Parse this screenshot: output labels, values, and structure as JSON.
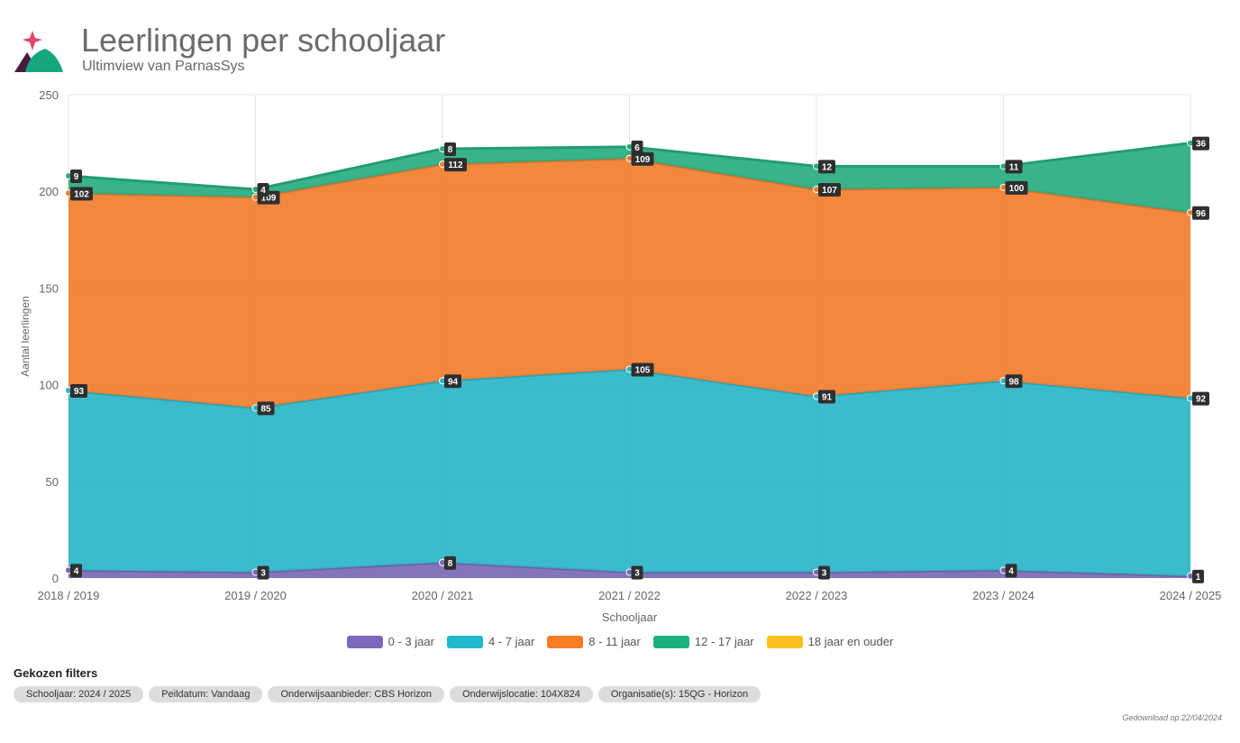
{
  "header": {
    "title": "Leerlingen per schooljaar",
    "subtitle": "Ultimview van ParnasSys"
  },
  "colors": {
    "purple": "#7b68b3",
    "blue": "#2ab5c8",
    "orange": "#f07e2e",
    "green": "#27ad80",
    "yellow": "#f6c12d",
    "logo_pink": "#e2466e",
    "logo_dark": "#4a1a3f",
    "logo_green": "#17a67e"
  },
  "chart_data": {
    "type": "area",
    "stacked": true,
    "title": "Leerlingen per schooljaar",
    "xlabel": "Schooljaar",
    "ylabel": "Aantal leerlingen",
    "ylim": [
      0,
      250
    ],
    "yticks": [
      0,
      50,
      100,
      150,
      200,
      250
    ],
    "categories": [
      "2018 / 2019",
      "2019 / 2020",
      "2020 / 2021",
      "2021 / 2022",
      "2022 / 2023",
      "2023 / 2024",
      "2024 / 2025"
    ],
    "series": [
      {
        "name": "0 - 3 jaar",
        "color": "#7b68b3",
        "values": [
          4,
          3,
          8,
          3,
          3,
          4,
          1
        ]
      },
      {
        "name": "4 - 7 jaar",
        "color": "#2ab5c8",
        "values": [
          93,
          85,
          94,
          105,
          91,
          98,
          92
        ]
      },
      {
        "name": "8 - 11 jaar",
        "color": "#f07e2e",
        "values": [
          102,
          109,
          112,
          109,
          107,
          100,
          96
        ]
      },
      {
        "name": "12 - 17 jaar",
        "color": "#27ad80",
        "values": [
          9,
          4,
          8,
          6,
          12,
          11,
          36
        ]
      },
      {
        "name": "18 jaar en ouder",
        "color": "#f6c12d",
        "values": [
          0,
          0,
          0,
          0,
          0,
          0,
          0
        ]
      }
    ],
    "legend_position": "bottom-center",
    "grid": true
  },
  "filters": {
    "title": "Gekozen filters",
    "chips": [
      "Schooljaar: 2024 / 2025",
      "Peildatum: Vandaag",
      "Onderwijsaanbieder: CBS Horizon",
      "Onderwijslocatie: 104X824",
      "Organisatie(s): 15QG - Horizon"
    ]
  },
  "footer": {
    "download_text": "Gedownload op 22/04/2024"
  }
}
